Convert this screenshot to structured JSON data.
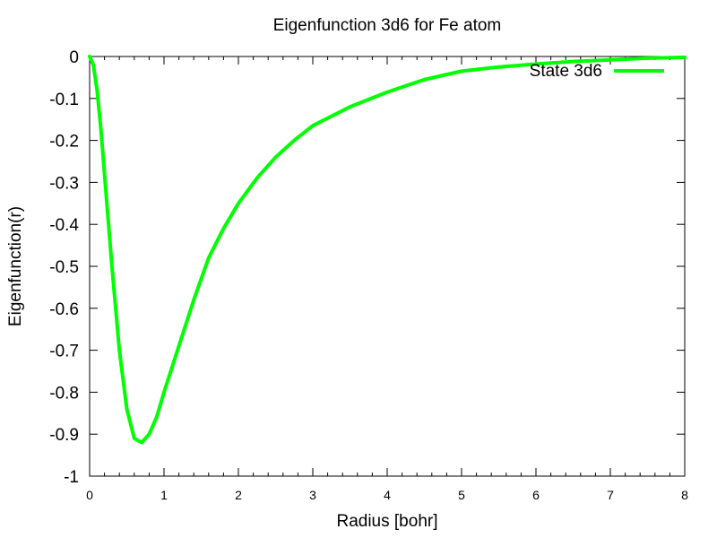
{
  "chart_data": {
    "type": "line",
    "title": "Eigenfunction 3d6 for Fe atom",
    "xlabel": "Radius [bohr]",
    "ylabel": "Eigenfunction(r)",
    "xlim": [
      0,
      8
    ],
    "ylim": [
      -1,
      0
    ],
    "x_ticks": [
      "0",
      "1",
      "2",
      "3",
      "4",
      "5",
      "6",
      "7",
      "8"
    ],
    "y_ticks": [
      "0",
      "-0.1",
      "-0.2",
      "-0.3",
      "-0.4",
      "-0.5",
      "-0.6",
      "-0.7",
      "-0.8",
      "-0.9",
      "-1"
    ],
    "grid": false,
    "legend_position": "top-right",
    "series": [
      {
        "name": "State 3d6",
        "color": "#00ff00",
        "x": [
          0,
          0.05,
          0.1,
          0.15,
          0.2,
          0.3,
          0.4,
          0.5,
          0.6,
          0.7,
          0.8,
          0.9,
          1.0,
          1.2,
          1.4,
          1.6,
          1.8,
          2.0,
          2.25,
          2.5,
          2.75,
          3.0,
          3.5,
          4.0,
          4.5,
          5.0,
          5.5,
          6.0,
          6.5,
          7.0,
          7.5,
          8.0
        ],
        "y": [
          0,
          -0.02,
          -0.08,
          -0.17,
          -0.28,
          -0.5,
          -0.7,
          -0.84,
          -0.91,
          -0.92,
          -0.9,
          -0.86,
          -0.8,
          -0.69,
          -0.58,
          -0.48,
          -0.41,
          -0.35,
          -0.29,
          -0.24,
          -0.2,
          -0.165,
          -0.12,
          -0.085,
          -0.055,
          -0.035,
          -0.025,
          -0.018,
          -0.012,
          -0.008,
          -0.004,
          -0.002
        ]
      }
    ]
  }
}
